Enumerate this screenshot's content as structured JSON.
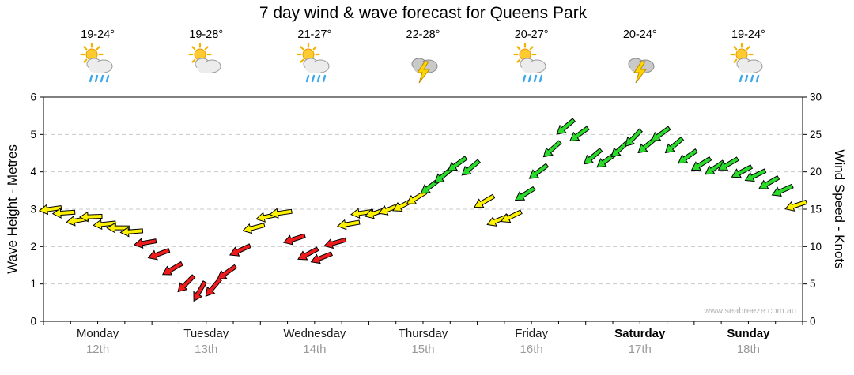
{
  "title": "7 day wind & wave forecast for Queens Park",
  "watermark": "www.seabreeze.com.au",
  "axes": {
    "left_label": "Wave Height - Metres",
    "right_label": "Wind Speed - Knots",
    "left_ticks": [
      0,
      1,
      2,
      3,
      4,
      5,
      6
    ],
    "right_ticks": [
      0,
      5,
      10,
      15,
      20,
      25,
      30
    ]
  },
  "days": [
    {
      "name": "Monday",
      "date": "12th",
      "temp": "19-24°",
      "icon": "sun-cloud-rain",
      "bold": false
    },
    {
      "name": "Tuesday",
      "date": "13th",
      "temp": "19-28°",
      "icon": "sun-cloud",
      "bold": false
    },
    {
      "name": "Wednesday",
      "date": "14th",
      "temp": "21-27°",
      "icon": "sun-cloud-rain",
      "bold": false
    },
    {
      "name": "Thursday",
      "date": "15th",
      "temp": "22-28°",
      "icon": "storm",
      "bold": false
    },
    {
      "name": "Friday",
      "date": "16th",
      "temp": "20-27°",
      "icon": "sun-cloud-rain",
      "bold": false
    },
    {
      "name": "Saturday",
      "date": "17th",
      "temp": "20-24°",
      "icon": "storm",
      "bold": true
    },
    {
      "name": "Sunday",
      "date": "18th",
      "temp": "19-24°",
      "icon": "sun-cloud-rain",
      "bold": true
    }
  ],
  "chart_data": {
    "type": "wind-arrows",
    "title": "7 day wind & wave forecast for Queens Park",
    "categories": [
      "Monday 12th",
      "Tuesday 13th",
      "Wednesday 14th",
      "Thursday 15th",
      "Friday 16th",
      "Saturday 17th",
      "Sunday 18th"
    ],
    "ylabel_left": "Wave Height - Metres",
    "ylabel_right": "Wind Speed - Knots",
    "ylim_wave": [
      0,
      6
    ],
    "ylim_knots": [
      0,
      30
    ],
    "grid": "horizontal-dashed",
    "points_per_day": 8,
    "wind_knots": [
      15,
      14.5,
      13.5,
      14,
      13,
      12.5,
      12,
      10.5,
      9,
      7,
      5,
      4,
      4.5,
      6.5,
      9.5,
      12.5,
      14,
      14.5,
      11,
      9,
      8.5,
      10.5,
      13,
      14.5,
      14.5,
      15,
      15.5,
      16.5,
      18,
      19.5,
      21,
      20.5,
      16,
      13.5,
      14,
      17,
      20,
      23,
      26,
      25,
      22,
      21.5,
      23,
      24.5,
      23.5,
      25,
      23.5,
      22,
      21,
      20.5,
      21,
      20,
      19.5,
      18.5,
      17.5,
      15.5
    ],
    "wind_dir_deg": [
      172,
      176,
      170,
      178,
      174,
      180,
      176,
      170,
      160,
      150,
      135,
      120,
      130,
      145,
      155,
      165,
      168,
      172,
      162,
      152,
      158,
      164,
      170,
      172,
      162,
      158,
      152,
      148,
      143,
      140,
      144,
      140,
      150,
      158,
      154,
      148,
      143,
      138,
      140,
      144,
      140,
      144,
      138,
      134,
      140,
      144,
      140,
      145,
      148,
      146,
      150,
      152,
      154,
      150,
      156,
      162
    ],
    "thresholds": {
      "red_below": 11.5,
      "green_from": 17
    },
    "colors": {
      "red": "#EE1C1C",
      "yellow": "#FFF200",
      "green": "#2BDB2B"
    }
  }
}
